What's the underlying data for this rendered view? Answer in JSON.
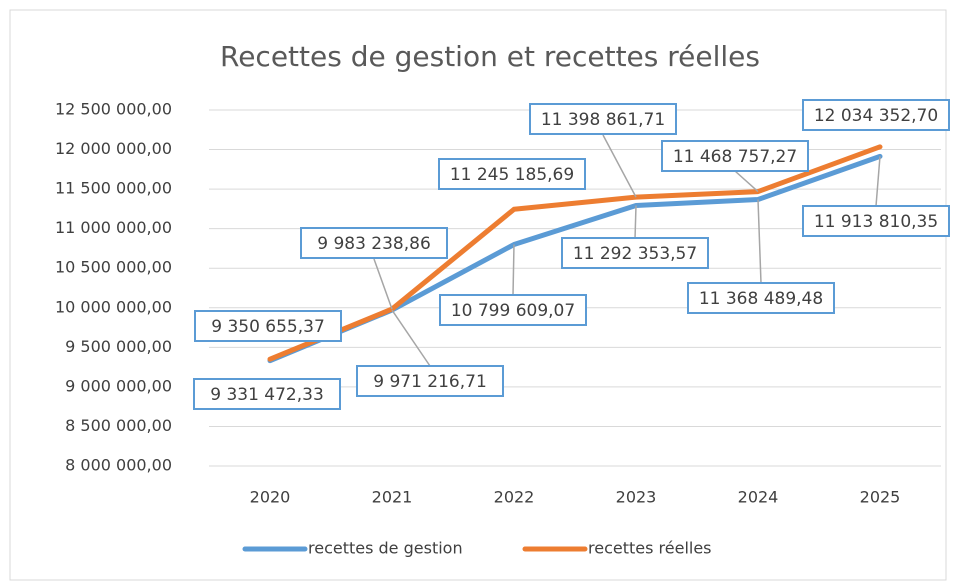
{
  "chart_data": {
    "type": "line",
    "title": "Recettes de gestion et recettes réelles",
    "categories": [
      "2020",
      "2021",
      "2022",
      "2023",
      "2024",
      "2025"
    ],
    "series": [
      {
        "name": "recettes de gestion",
        "color": "#5b9bd5",
        "values": [
          9331472.33,
          9971216.71,
          10799609.07,
          11292353.57,
          11368489.48,
          11913810.35
        ],
        "value_labels": [
          "9 331 472,33",
          "9 971 216,71",
          "10 799 609,07",
          "11 292 353,57",
          "11 368 489,48",
          "11 913 810,35"
        ]
      },
      {
        "name": "recettes réelles",
        "color": "#ed7d31",
        "values": [
          9350655.37,
          9983238.86,
          11245185.69,
          11398861.71,
          11468757.27,
          12034352.7
        ],
        "value_labels": [
          "9 350 655,37",
          "9 983 238,86",
          "11 245 185,69",
          "11 398 861,71",
          "11 468 757,27",
          "12 034 352,70"
        ]
      }
    ],
    "ylim": [
      8000000,
      12500000
    ],
    "yticks": [
      {
        "value": 8000000,
        "label": "8 000 000,00"
      },
      {
        "value": 8500000,
        "label": "8 500 000,00"
      },
      {
        "value": 9000000,
        "label": "9 000 000,00"
      },
      {
        "value": 9500000,
        "label": "9 500 000,00"
      },
      {
        "value": 10000000,
        "label": "10 000 000,00"
      },
      {
        "value": 10500000,
        "label": "10 500 000,00"
      },
      {
        "value": 11000000,
        "label": "11 000 000,00"
      },
      {
        "value": 11500000,
        "label": "11 500 000,00"
      },
      {
        "value": 12000000,
        "label": "12 000 000,00"
      },
      {
        "value": 12500000,
        "label": "12 500 000,00"
      }
    ],
    "grid": true,
    "legend": "bottom"
  }
}
